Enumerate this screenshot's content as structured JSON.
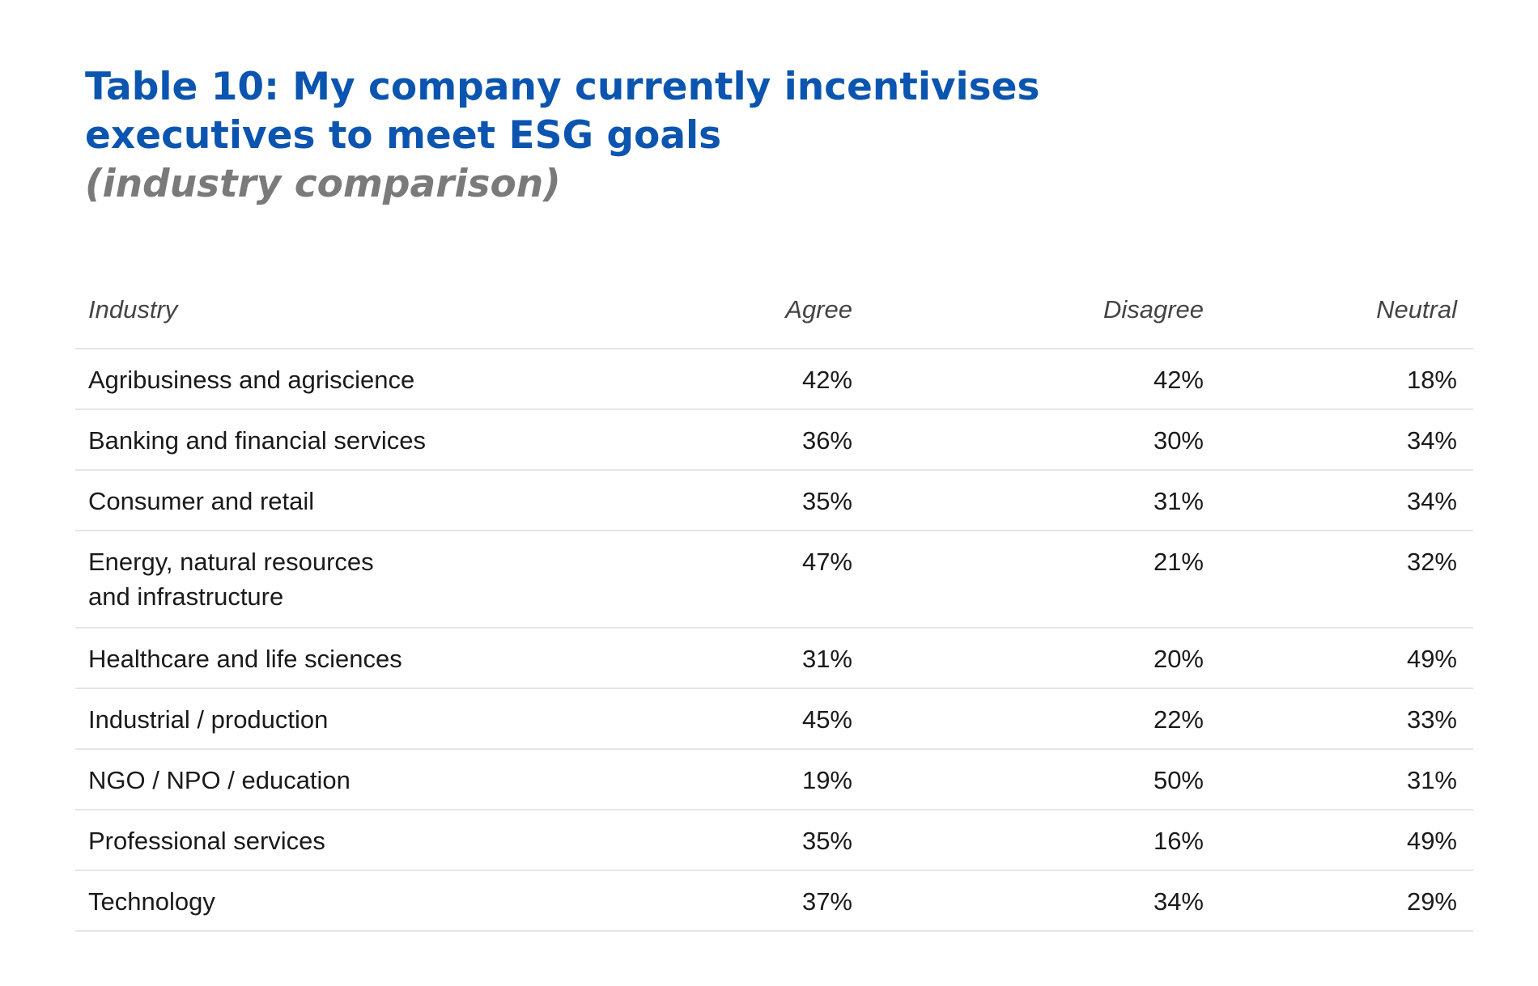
{
  "title": {
    "line1": "Table 10: My company currently incentivises",
    "line2": "executives to meet ESG goals",
    "subtitle": "(industry comparison)"
  },
  "table": {
    "headers": {
      "industry": "Industry",
      "agree": "Agree",
      "disagree": "Disagree",
      "neutral": "Neutral"
    },
    "rows": [
      {
        "industry": "Agribusiness and agriscience",
        "agree": "42%",
        "disagree": "42%",
        "neutral": "18%"
      },
      {
        "industry": "Banking and financial services",
        "agree": "36%",
        "disagree": "30%",
        "neutral": "34%"
      },
      {
        "industry": "Consumer and retail",
        "agree": "35%",
        "disagree": "31%",
        "neutral": "34%"
      },
      {
        "industry_line1": "Energy, natural resources",
        "industry_line2": "and infrastructure",
        "agree": "47%",
        "disagree": "21%",
        "neutral": "32%"
      },
      {
        "industry": "Healthcare and life sciences",
        "agree": "31%",
        "disagree": "20%",
        "neutral": "49%"
      },
      {
        "industry": "Industrial / production",
        "agree": "45%",
        "disagree": "22%",
        "neutral": "33%"
      },
      {
        "industry": "NGO / NPO / education",
        "agree": "19%",
        "disagree": "50%",
        "neutral": "31%"
      },
      {
        "industry": "Professional services",
        "agree": "35%",
        "disagree": "16%",
        "neutral": "49%"
      },
      {
        "industry": "Technology",
        "agree": "37%",
        "disagree": "34%",
        "neutral": "29%"
      }
    ]
  },
  "colors": {
    "title": "#0b55b0",
    "subtitle": "#7a7a7a",
    "rule": "#e6e6e6"
  }
}
